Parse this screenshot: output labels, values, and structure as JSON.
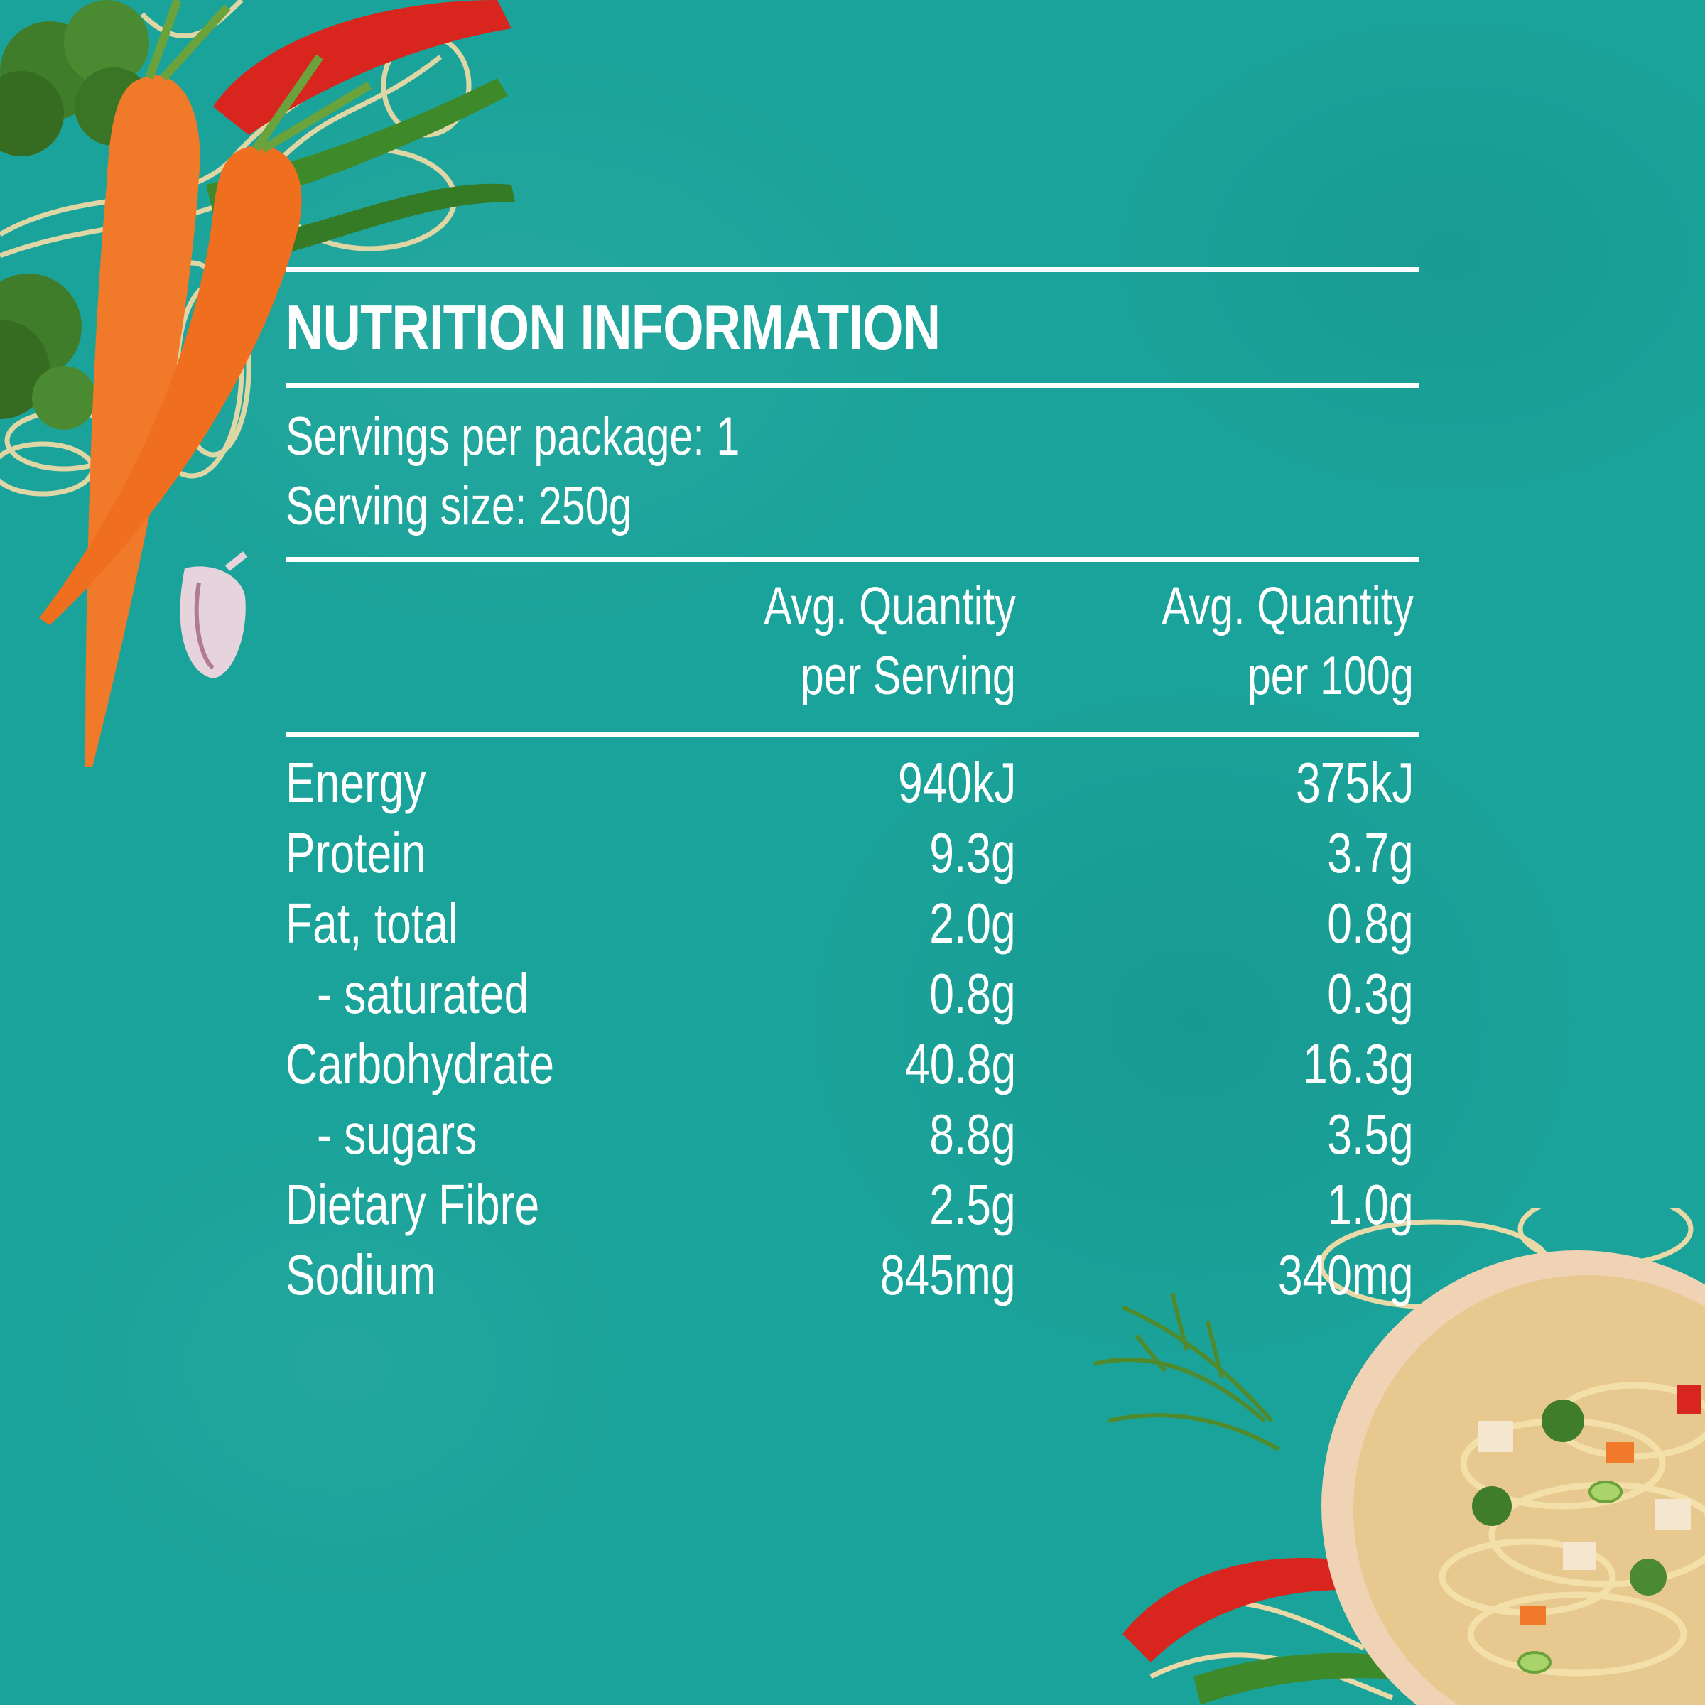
{
  "colors": {
    "background": "#1aa39a",
    "text": "#ffffff",
    "carrot": "#f07a2a",
    "broccoli": "#3f7d2a",
    "pepper": "#d8261e",
    "pasta": "#e9d9a6"
  },
  "label": {
    "title": "NUTRITION INFORMATION",
    "servings_per_package": "Servings per package: 1",
    "serving_size": "Serving size: 250g",
    "columns": {
      "per_serving_line1": "Avg. Quantity",
      "per_serving_line2": "per Serving",
      "per_100g_line1": "Avg. Quantity",
      "per_100g_line2": "per 100g"
    },
    "rows": [
      {
        "name": "Energy",
        "per_serving": "940kJ",
        "per_100g": "375kJ"
      },
      {
        "name": "Protein",
        "per_serving": "9.3g",
        "per_100g": "3.7g"
      },
      {
        "name": "Fat, total",
        "per_serving": "2.0g",
        "per_100g": "0.8g"
      },
      {
        "name": "- saturated",
        "per_serving": "0.8g",
        "per_100g": "0.3g"
      },
      {
        "name": "Carbohydrate",
        "per_serving": "40.8g",
        "per_100g": "16.3g"
      },
      {
        "name": "- sugars",
        "per_serving": "8.8g",
        "per_100g": "3.5g"
      },
      {
        "name": "Dietary Fibre",
        "per_serving": "2.5g",
        "per_100g": "1.0g"
      },
      {
        "name": "Sodium",
        "per_serving": "845mg",
        "per_100g": "340mg"
      }
    ]
  }
}
